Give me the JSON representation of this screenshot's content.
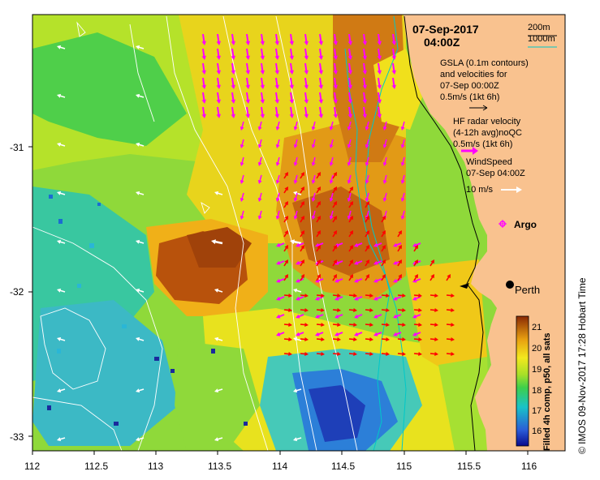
{
  "map": {
    "date": "07-Sep-2017",
    "time": "04:00Z",
    "y_ticks": [
      "-31",
      "-32",
      "-33"
    ],
    "x_ticks": [
      "112",
      "112.5",
      "113",
      "113.5",
      "114",
      "114.5",
      "115",
      "115.5",
      "116"
    ],
    "city": "Perth",
    "argo_label": "Argo",
    "credit": "© IMOS 09-Nov-2017 17:28 Hobart Time"
  },
  "legend": {
    "contour_200": "200m",
    "contour_1000": "1000m",
    "gsla_line1": "GSLA (0.1m contours)",
    "gsla_line2": "and velocities for",
    "gsla_line3": "07-Sep 00:00Z",
    "gsla_scale": "0.5m/s (1kt 6h)",
    "hf_line1": "HF radar velocity",
    "hf_line2": "(4-12h avg)noQC",
    "hf_scale": "0.5m/s (1kt 6h)",
    "wind_line1": "WindSpeed",
    "wind_line2": "07-Sep 04:00Z",
    "wind_scale": "10 m/s"
  },
  "colorbar": {
    "title": "Filled 4h comp, p50, all sats",
    "ticks": [
      "21",
      "20",
      "19",
      "18",
      "17",
      "16"
    ],
    "min": 15.5,
    "max": 21.5
  },
  "colors": {
    "land": "#f9c28f",
    "hf_radar_arrow": "#ff00ff",
    "slope_arrow": "#ff0000",
    "wind_arrow": "#ffffff",
    "contour_200": "#000000",
    "contour_1000": "#00c8c8"
  }
}
